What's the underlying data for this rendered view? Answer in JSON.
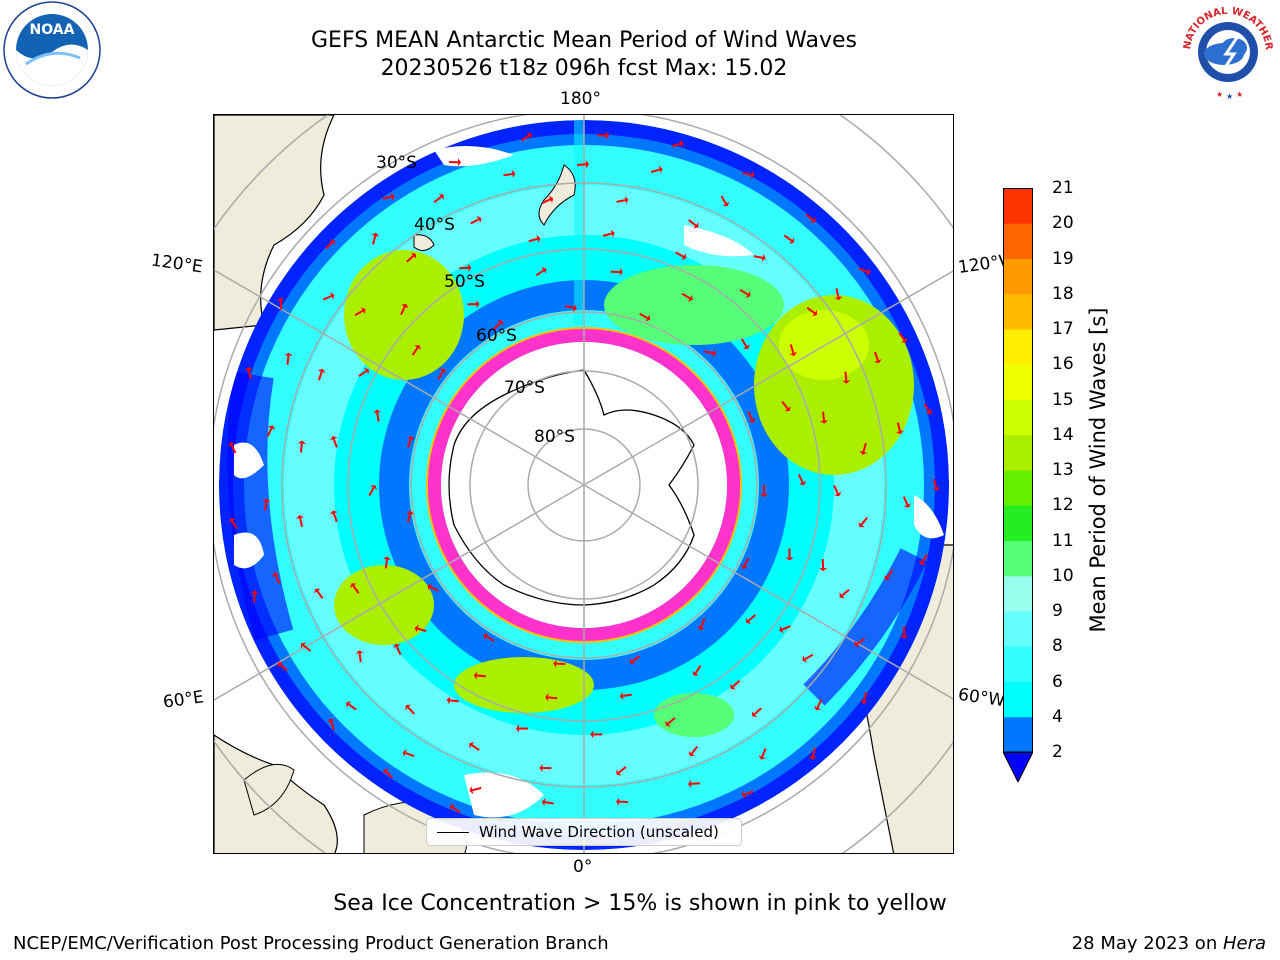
{
  "title": {
    "line1": "GEFS MEAN Antarctic Mean Period of Wind Waves",
    "line2": "20230526 t18z 096h fcst   Max: 15.02"
  },
  "map": {
    "longitude_labels": [
      "180°",
      "120°E",
      "120°W",
      "60°E",
      "60°W",
      "0°"
    ],
    "latitude_labels": [
      "30°S",
      "40°S",
      "50°S",
      "60°S",
      "70°S",
      "80°S"
    ],
    "legend": "Wind Wave Direction (unscaled)",
    "arrow_color": "#ff0000",
    "land_color": "#efecdc"
  },
  "colorbar": {
    "label": "Mean Period of Wind Waves [s]",
    "ticks": [
      "2",
      "4",
      "6",
      "8",
      "9",
      "10",
      "11",
      "12",
      "13",
      "14",
      "15",
      "16",
      "17",
      "18",
      "19",
      "20",
      "21"
    ],
    "colors": [
      "#0077ff",
      "#00ffff",
      "#33ffff",
      "#66ffff",
      "#99ffee",
      "#55ff77",
      "#22ee22",
      "#66ee00",
      "#aaee00",
      "#ccff00",
      "#eeff00",
      "#ffee00",
      "#ffbb00",
      "#ff9900",
      "#ff6600",
      "#ff3300"
    ],
    "under_color": "#0000ff"
  },
  "notes": {
    "sea_ice": "Sea Ice Concentration > 15% is shown in pink to yellow"
  },
  "footer": {
    "left": "NCEP/EMC/Verification Post Processing Product Generation Branch",
    "date": "28 May 2023 on ",
    "host": "Hera"
  },
  "logos": {
    "noaa_text": "NOAA",
    "nws_text": "NATIONAL WEATHER SERVICE"
  }
}
